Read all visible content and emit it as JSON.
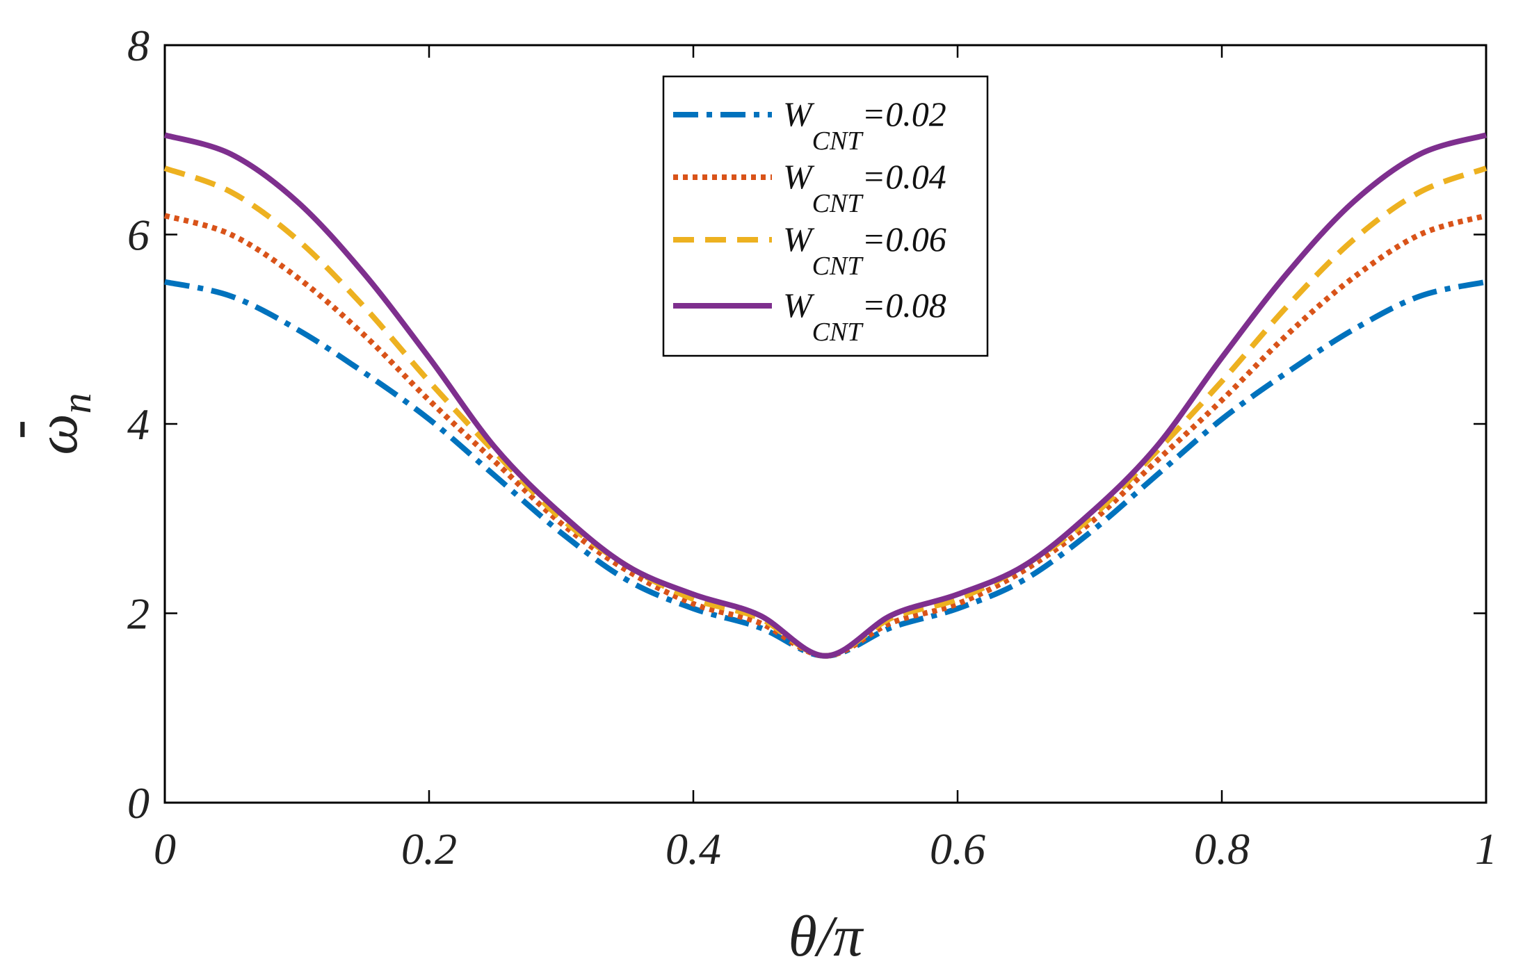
{
  "chart_data": {
    "type": "line",
    "title": "",
    "xlabel": "θ/π",
    "ylabel": "ω̄n",
    "ylabel_base": "ω",
    "ylabel_bar": "-",
    "ylabel_sub": "n",
    "xlim": [
      0,
      1
    ],
    "ylim": [
      0,
      8
    ],
    "xticks": [
      0,
      0.2,
      0.4,
      0.6,
      0.8,
      1
    ],
    "xtick_labels": [
      "0",
      "0.2",
      "0.4",
      "0.6",
      "0.8",
      "1"
    ],
    "yticks": [
      0,
      2,
      4,
      6,
      8
    ],
    "ytick_labels": [
      "0",
      "2",
      "4",
      "6",
      "8"
    ],
    "grid": false,
    "legend_position": "top-center",
    "x": [
      0,
      0.05,
      0.1,
      0.15,
      0.2,
      0.25,
      0.3,
      0.35,
      0.4,
      0.45,
      0.5,
      0.55,
      0.6,
      0.65,
      0.7,
      0.75,
      0.8,
      0.85,
      0.9,
      0.95,
      1
    ],
    "series": [
      {
        "name": "W_CNT=0.02",
        "legend_main": "W",
        "legend_sub": "CNT",
        "legend_value": "=0.02",
        "color": "#0072BD",
        "dash": "36 12 8 12",
        "values": [
          5.5,
          5.35,
          5.0,
          4.55,
          4.05,
          3.45,
          2.85,
          2.35,
          2.05,
          1.85,
          1.55,
          1.85,
          2.05,
          2.35,
          2.85,
          3.45,
          4.05,
          4.55,
          5.0,
          5.35,
          5.5
        ]
      },
      {
        "name": "W_CNT=0.04",
        "legend_main": "W",
        "legend_sub": "CNT",
        "legend_value": "=0.04",
        "color": "#D95319",
        "dash": "7 7",
        "values": [
          6.2,
          6.0,
          5.55,
          4.95,
          4.25,
          3.6,
          2.95,
          2.45,
          2.1,
          1.9,
          1.55,
          1.9,
          2.1,
          2.45,
          2.95,
          3.6,
          4.25,
          4.95,
          5.55,
          6.0,
          6.2
        ]
      },
      {
        "name": "W_CNT=0.06",
        "legend_main": "W",
        "legend_sub": "CNT",
        "legend_value": "=0.06",
        "color": "#EDB120",
        "dash": "30 16",
        "values": [
          6.7,
          6.45,
          5.95,
          5.25,
          4.45,
          3.7,
          3.0,
          2.5,
          2.15,
          1.95,
          1.55,
          1.95,
          2.15,
          2.5,
          3.0,
          3.7,
          4.45,
          5.25,
          5.95,
          6.45,
          6.7
        ]
      },
      {
        "name": "W_CNT=0.08",
        "legend_main": "W",
        "legend_sub": "CNT",
        "legend_value": "=0.08",
        "color": "#7E2F8E",
        "dash": "",
        "values": [
          7.05,
          6.85,
          6.35,
          5.6,
          4.7,
          3.75,
          3.05,
          2.5,
          2.2,
          1.98,
          1.55,
          1.98,
          2.2,
          2.5,
          3.05,
          3.75,
          4.7,
          5.6,
          6.35,
          6.85,
          7.05
        ]
      }
    ]
  }
}
